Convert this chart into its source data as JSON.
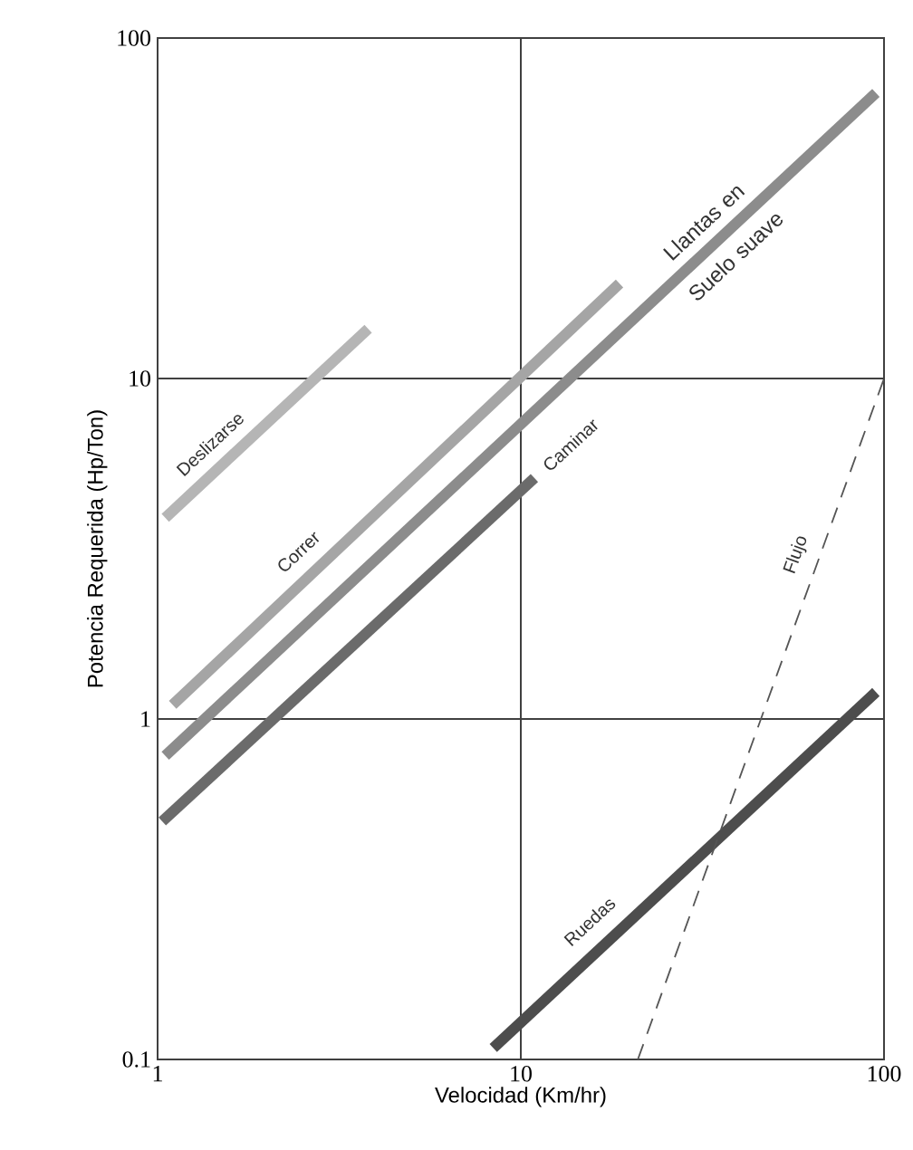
{
  "chart_data": {
    "type": "line",
    "xlabel": "Velocidad (Km/hr)",
    "ylabel": "Potencia Requerida (Hp/Ton)",
    "log": "xy",
    "xlim": [
      1,
      100
    ],
    "ylim": [
      0.1,
      100
    ],
    "xticks": [
      1,
      10,
      100
    ],
    "yticks": [
      0.1,
      1,
      10,
      100
    ],
    "grid": true,
    "marker": "none",
    "series": [
      {
        "name": "Deslizarse",
        "color": "#b5b5b5",
        "x": [
          1.05,
          3.8
        ],
        "values": [
          3.9,
          14
        ]
      },
      {
        "name": "Correr",
        "color": "#a5a5a5",
        "x": [
          1.1,
          18.7
        ],
        "values": [
          1.1,
          19
        ]
      },
      {
        "name": "Llantas en Suelo suave",
        "color": "#8c8c8c",
        "x": [
          1.05,
          95
        ],
        "values": [
          0.78,
          69
        ]
      },
      {
        "name": "Caminar",
        "color": "#6b6b6b",
        "x": [
          1.03,
          10.9
        ],
        "values": [
          0.5,
          5.1
        ]
      },
      {
        "name": "Ruedas",
        "color": "#4d4d4d",
        "x": [
          8.4,
          95
        ],
        "values": [
          0.108,
          1.2
        ]
      },
      {
        "name": "Flujo",
        "color": "#555555",
        "x": [
          21,
          100
        ],
        "values": [
          0.1,
          10
        ],
        "line_style": "dashed"
      }
    ]
  }
}
